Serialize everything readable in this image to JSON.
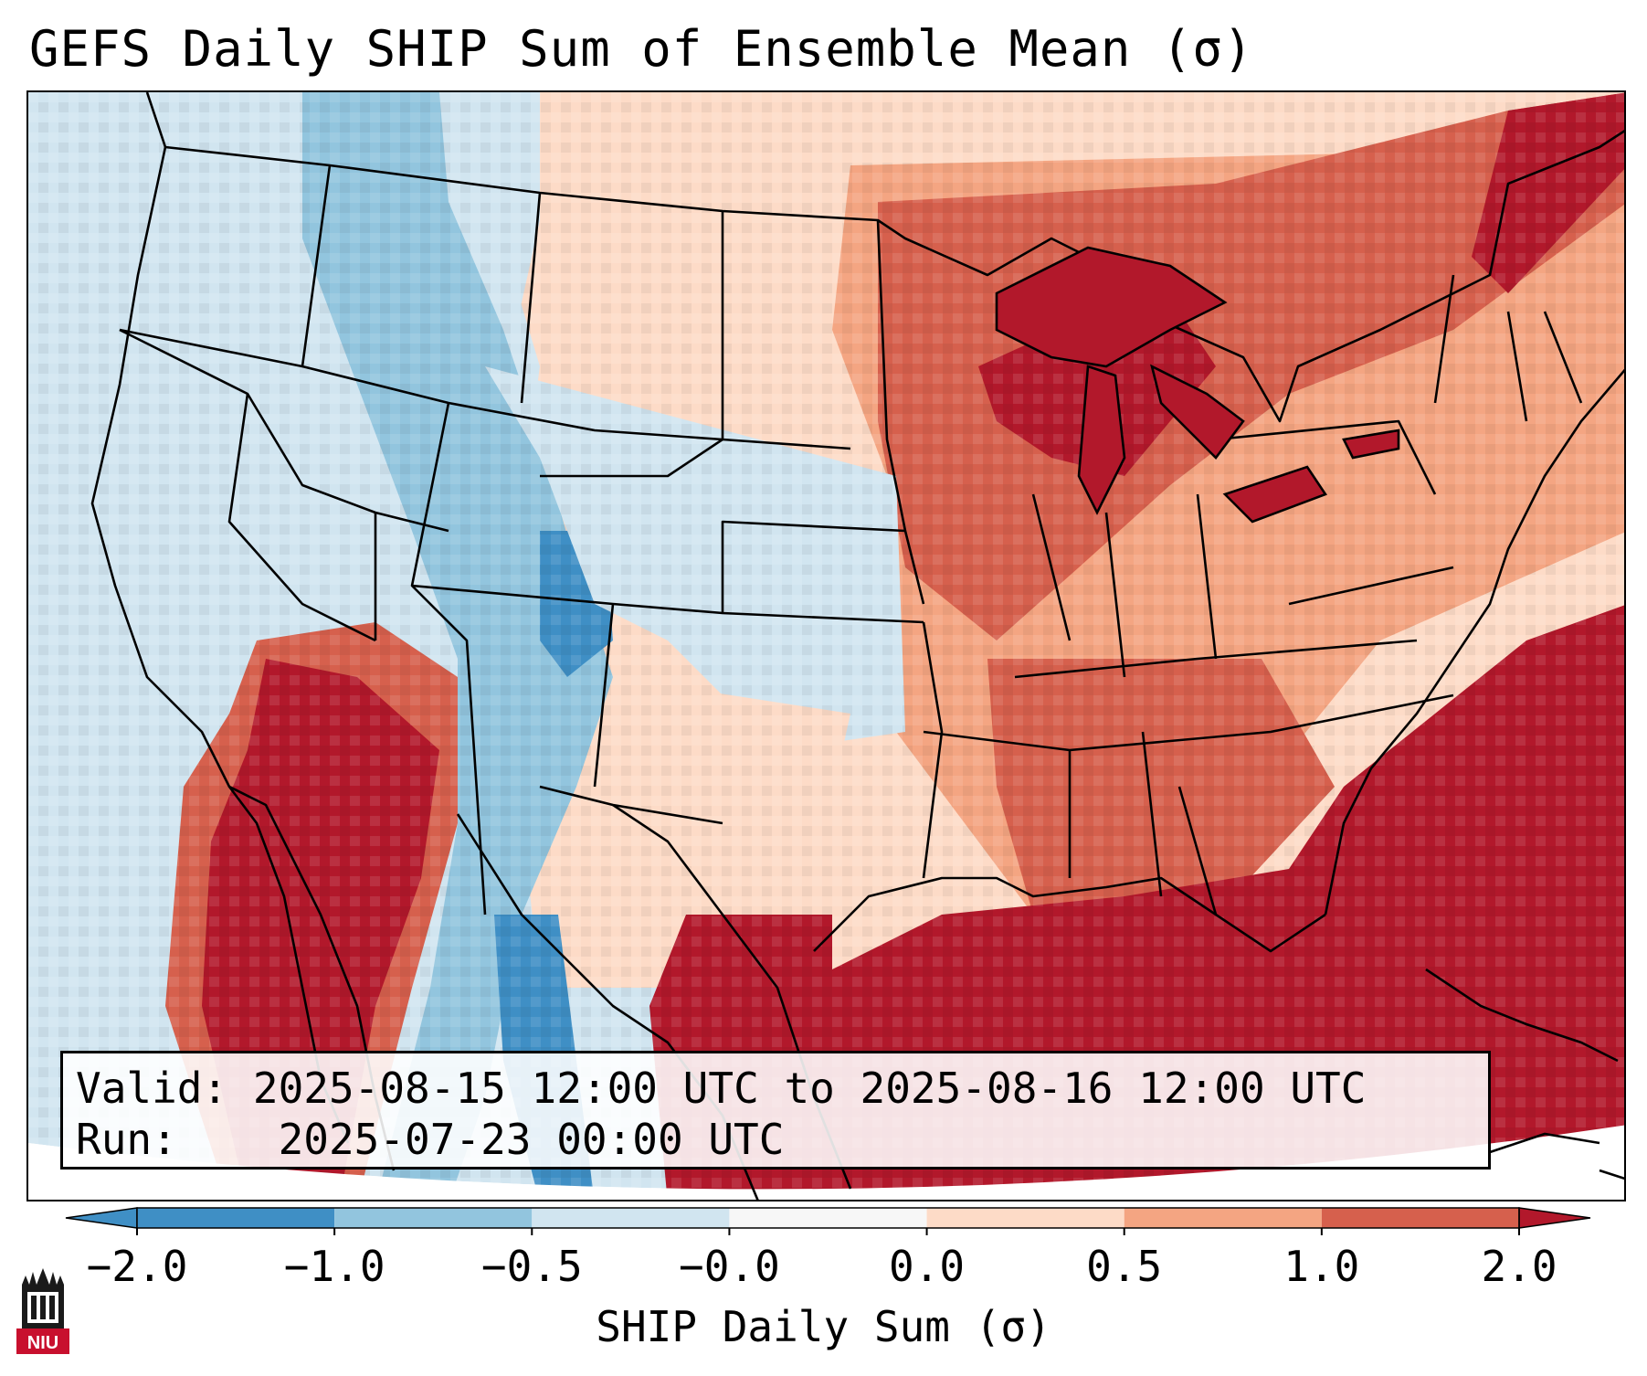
{
  "title": "GEFS Daily SHIP Sum of Ensemble Mean (σ)",
  "info": {
    "valid_label": "Valid:",
    "valid_value": "2025-08-15 12:00 UTC to 2025-08-16 12:00 UTC",
    "run_label": "Run:",
    "run_value": "2025-07-23 00:00 UTC"
  },
  "colorbar": {
    "label": "SHIP Daily Sum (σ)",
    "ticks": [
      "−2.0",
      "−1.0",
      "−0.5",
      "−0.0",
      "0.0",
      "0.5",
      "1.0",
      "2.0"
    ],
    "colors": [
      "#3f8fc5",
      "#92c5de",
      "#d1e5f0",
      "#f7f7f7",
      "#fddbc7",
      "#f4a582",
      "#d6604d",
      "#b2182b"
    ],
    "extend": "both"
  },
  "map": {
    "region": "Contiguous United States",
    "projection_note": "Lambert Conformal",
    "ocean_west_color": "#d1e5f0",
    "ocean_east_color": "#b2182b"
  },
  "logo": {
    "text": "NIU"
  }
}
